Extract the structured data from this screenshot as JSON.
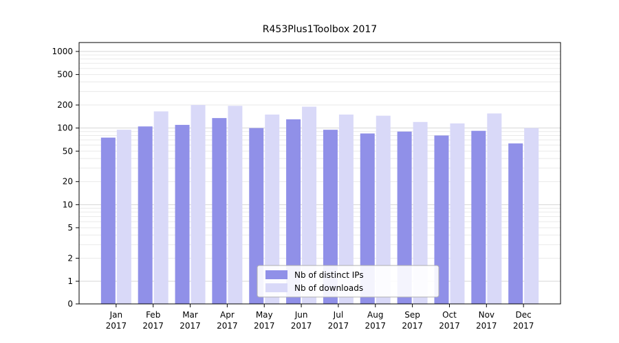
{
  "chart_data": {
    "type": "bar",
    "title": "R453Plus1Toolbox 2017",
    "categories": [
      "Jan 2017",
      "Feb 2017",
      "Mar 2017",
      "Apr 2017",
      "May 2017",
      "Jun 2017",
      "Jul 2017",
      "Aug 2017",
      "Sep 2017",
      "Oct 2017",
      "Nov 2017",
      "Dec 2017"
    ],
    "series": [
      {
        "name": "Nb of distinct IPs",
        "color": "#9090e8",
        "values": [
          75,
          105,
          110,
          135,
          100,
          130,
          95,
          85,
          90,
          80,
          92,
          63
        ]
      },
      {
        "name": "Nb of downloads",
        "color": "#d9d9f8",
        "values": [
          95,
          165,
          200,
          195,
          150,
          190,
          150,
          145,
          120,
          115,
          155,
          100
        ]
      }
    ],
    "yticks": [
      0,
      1,
      2,
      5,
      10,
      20,
      50,
      100,
      200,
      500,
      1000
    ],
    "ylim": [
      0,
      1000
    ],
    "yscale": "log-with-zero",
    "xlabel": "",
    "ylabel": "",
    "grid": true,
    "legend_position": "lower-center-inside"
  }
}
